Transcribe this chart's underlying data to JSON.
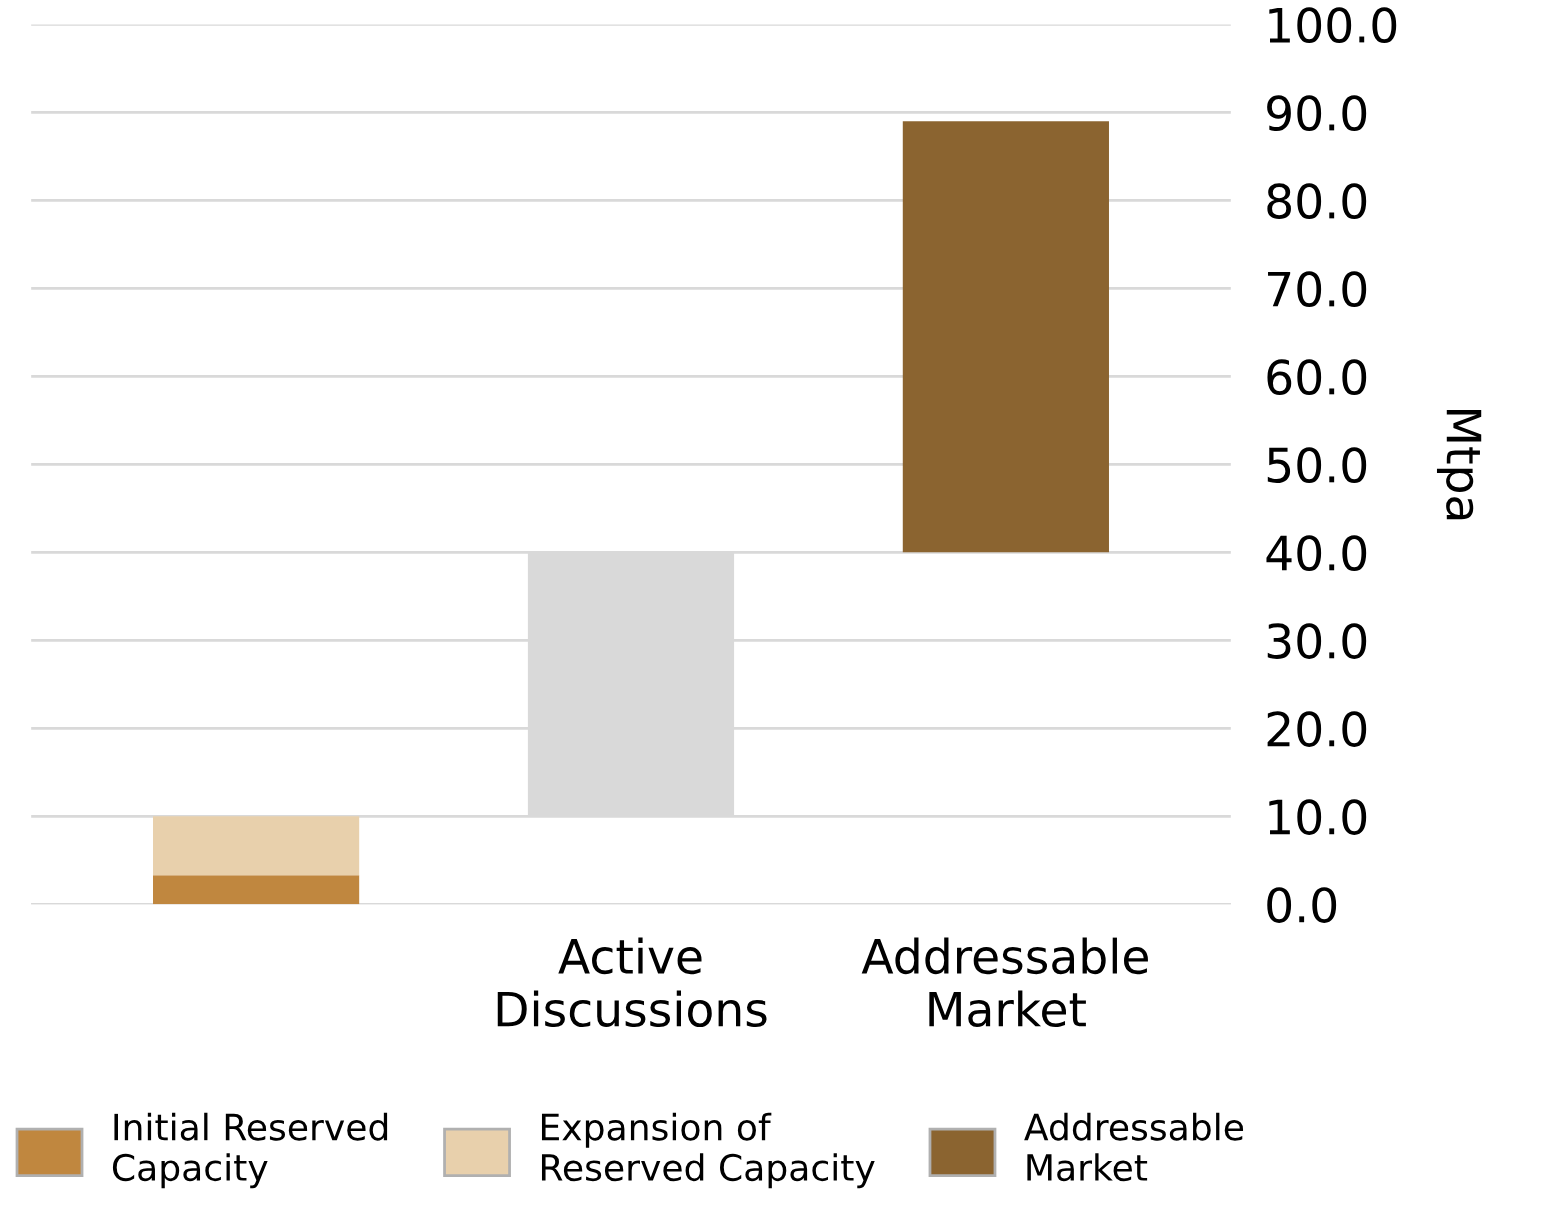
{
  "chart_data": {
    "type": "bar",
    "ylabel": "Mtpa",
    "categories": [
      null,
      "Active Discussions",
      "Addressable Market"
    ],
    "series": [
      {
        "name": "Initial Reserved Capacity",
        "color": "#c0873f",
        "values": [
          3.3,
          null,
          null
        ],
        "base": [
          0,
          null,
          null
        ]
      },
      {
        "name": "Expansion of Reserved Capacity",
        "color": "#e8d0ac",
        "values": [
          6.7,
          null,
          null
        ],
        "base": [
          3.3,
          null,
          null
        ]
      },
      {
        "color": "#d9d9d9",
        "values": [
          null,
          30,
          null
        ],
        "base": [
          null,
          10,
          null
        ]
      },
      {
        "name": "Addressable Market",
        "color": "#8b6430",
        "values": [
          null,
          null,
          49
        ],
        "base": [
          null,
          null,
          40
        ]
      }
    ],
    "ylim": [
      0,
      100
    ],
    "yticks": [
      {
        "value": 0,
        "label": "0.0"
      },
      {
        "value": 10,
        "label": "10.0"
      },
      {
        "value": 20,
        "label": "20.0"
      },
      {
        "value": 30,
        "label": "30.0"
      },
      {
        "value": 40,
        "label": "40.0"
      },
      {
        "value": 50,
        "label": "50.0"
      },
      {
        "value": 60,
        "label": "60.0"
      },
      {
        "value": 70,
        "label": "70.0"
      },
      {
        "value": 80,
        "label": "80.0"
      },
      {
        "value": 90,
        "label": "90.0"
      },
      {
        "value": 100,
        "label": "100.0"
      }
    ],
    "grid": "y",
    "legend": "bottom"
  }
}
